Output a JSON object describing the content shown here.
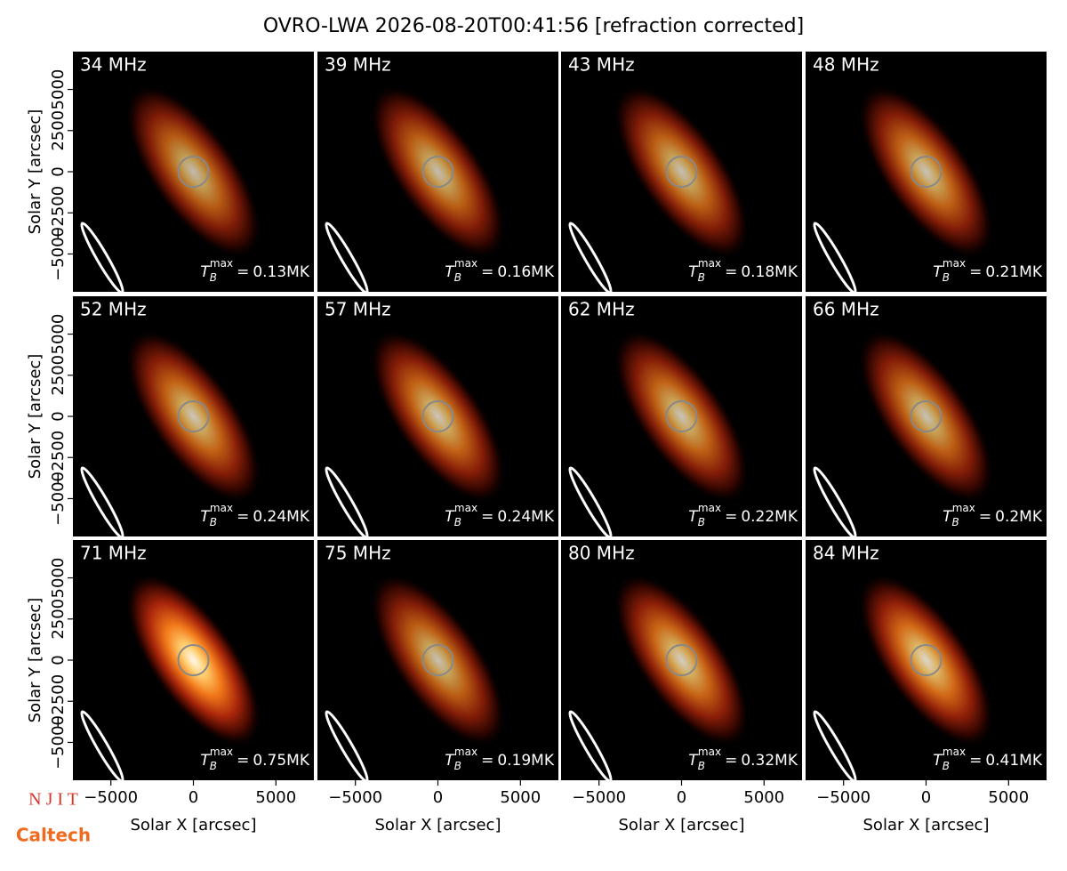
{
  "chart_data": {
    "type": "image-grid",
    "title": "OVRO-LWA 2026-08-20T00:41:56 [refraction corrected]",
    "x_label": "Solar X [arcsec]",
    "y_label": "Solar Y [arcsec]",
    "categories": [
      "34 MHz",
      "39 MHz",
      "43 MHz",
      "48 MHz",
      "52 MHz",
      "57 MHz",
      "62 MHz",
      "66 MHz",
      "71 MHz",
      "75 MHz",
      "80 MHz",
      "84 MHz"
    ],
    "values": [
      0.13,
      0.16,
      0.18,
      0.21,
      0.24,
      0.24,
      0.22,
      0.2,
      0.75,
      0.19,
      0.32,
      0.41
    ],
    "value_labels": [
      "0.13MK",
      "0.16MK",
      "0.18MK",
      "0.21MK",
      "0.24MK",
      "0.24MK",
      "0.22MK",
      "0.2MK",
      "0.75MK",
      "0.19MK",
      "0.32MK",
      "0.41MK"
    ],
    "tb_symbol": "T",
    "tb_sub": "B",
    "tb_sup": "max",
    "tb_equals": "=",
    "xlim": [
      -7300,
      7300
    ],
    "ylim": [
      -7300,
      7300
    ],
    "xticks": [
      {
        "value": -5000,
        "label": "−5000"
      },
      0,
      5000
    ],
    "yticks": [
      {
        "value": -5000,
        "label": "−5000"
      },
      {
        "value": -2500,
        "label": "−2500"
      },
      0,
      2500,
      5000
    ],
    "logos": [
      "N J I T",
      "Caltech"
    ]
  }
}
